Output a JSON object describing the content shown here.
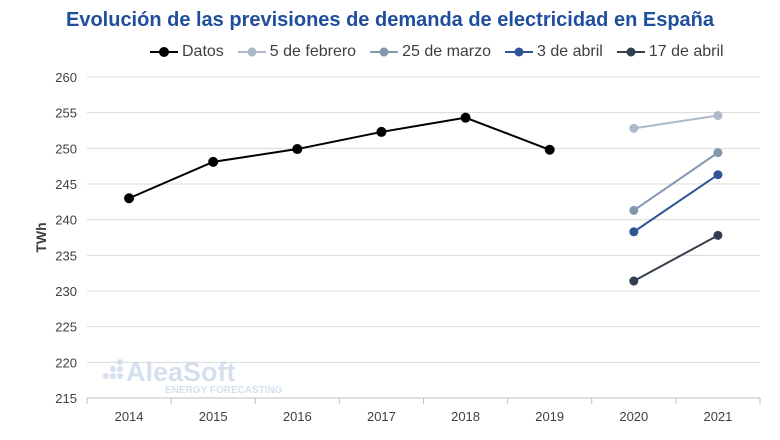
{
  "chart_data": {
    "type": "line",
    "title": "Evolución de las previsiones de demanda de electricidad en España",
    "xlabel": "",
    "ylabel": "TWh",
    "categories": [
      "2014",
      "2015",
      "2016",
      "2017",
      "2018",
      "2019",
      "2020",
      "2021"
    ],
    "ylim": [
      215,
      260
    ],
    "yticks": [
      215,
      220,
      225,
      230,
      235,
      240,
      245,
      250,
      255,
      260
    ],
    "grid": true,
    "legend_position": "top",
    "series": [
      {
        "name": "Datos",
        "color": "#000000",
        "values": [
          243.0,
          248.1,
          249.9,
          252.3,
          254.3,
          249.8,
          null,
          null
        ]
      },
      {
        "name": "5 de febrero",
        "color": "#adb9ca",
        "values": [
          null,
          null,
          null,
          null,
          null,
          null,
          252.8,
          254.6
        ]
      },
      {
        "name": "25 de marzo",
        "color": "#8497b0",
        "values": [
          null,
          null,
          null,
          null,
          null,
          null,
          241.3,
          249.4
        ]
      },
      {
        "name": "3 de abril",
        "color": "#2f5597",
        "values": [
          null,
          null,
          null,
          null,
          null,
          null,
          238.3,
          246.3
        ]
      },
      {
        "name": "17 de abril",
        "color": "#333f50",
        "values": [
          null,
          null,
          null,
          null,
          null,
          null,
          231.4,
          237.8
        ]
      }
    ]
  },
  "watermark": {
    "brand": "AleaSoft",
    "tagline": "ENERGY FORECASTING"
  }
}
